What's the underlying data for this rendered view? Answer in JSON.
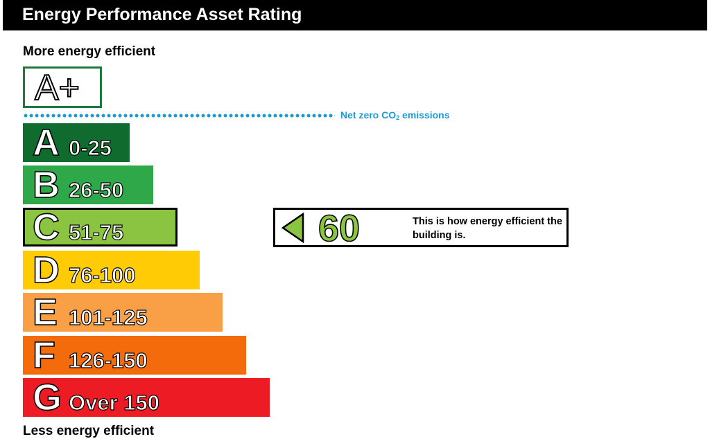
{
  "title": "Energy Performance Asset Rating",
  "top_label": "More energy efficient",
  "bottom_label": "Less energy efficient",
  "net_zero": {
    "label_prefix": "Net zero CO",
    "label_sub": "2",
    "label_suffix": " emissions",
    "color": "#1b9ad6"
  },
  "chart_data": {
    "type": "bar",
    "title": "Energy Performance Asset Rating",
    "extra_rating": {
      "letter": "A+",
      "border_color": "#1e7a3a"
    },
    "bands": [
      {
        "letter": "A",
        "range": "0-25",
        "color": "#0f6b2e",
        "order": 1
      },
      {
        "letter": "B",
        "range": "26-50",
        "color": "#2ea849",
        "order": 2
      },
      {
        "letter": "C",
        "range": "51-75",
        "color": "#8ac440",
        "order": 3
      },
      {
        "letter": "D",
        "range": "76-100",
        "color": "#ffcb05",
        "order": 4
      },
      {
        "letter": "E",
        "range": "101-125",
        "color": "#f9a046",
        "order": 5
      },
      {
        "letter": "F",
        "range": "126-150",
        "color": "#f36b0b",
        "order": 6
      },
      {
        "letter": "G",
        "range": "Over 150",
        "color": "#ed1c24",
        "order": 7
      }
    ],
    "current_rating": {
      "value": "60",
      "band": "C",
      "color": "#8ac440"
    }
  },
  "indicator_caption": "This is how energy efficient the building is."
}
